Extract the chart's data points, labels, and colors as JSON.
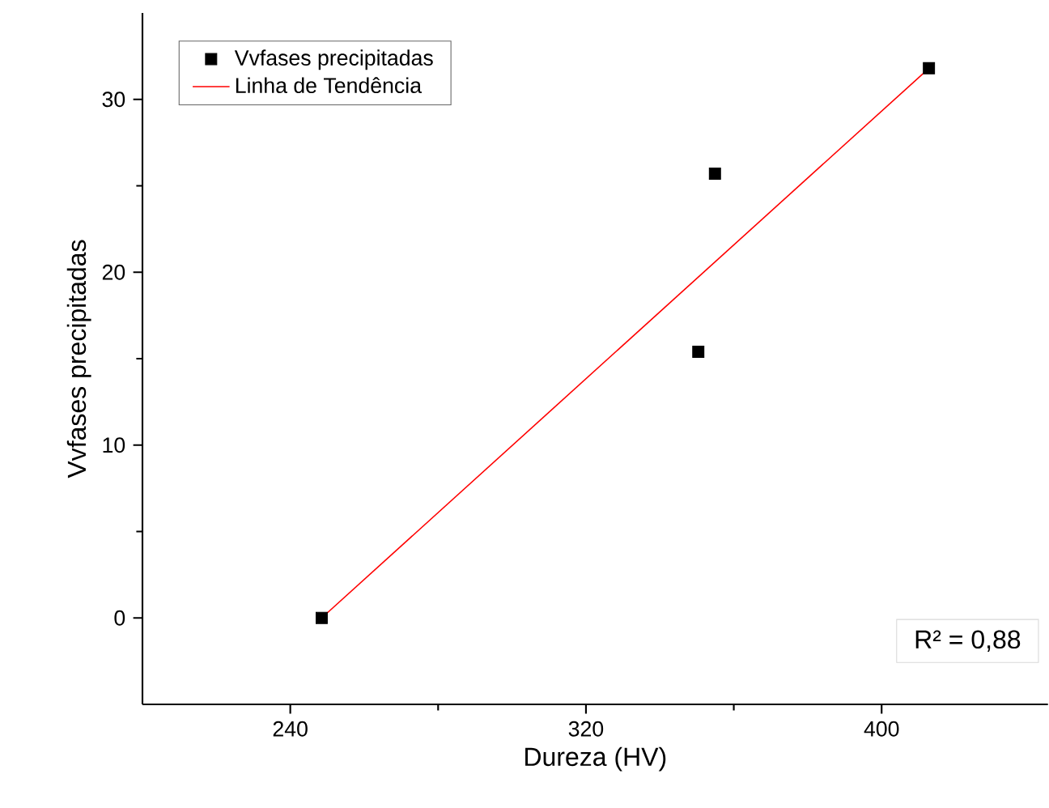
{
  "chart_data": {
    "type": "scatter",
    "xlabel": "Dureza (HV)",
    "ylabel": "Vvfases precipitadas",
    "xlim": [
      200,
      445
    ],
    "ylim": [
      -5,
      35
    ],
    "xticks": [
      240,
      320,
      400
    ],
    "yticks": [
      0,
      10,
      20,
      30
    ],
    "marker": "square",
    "legend": "top left",
    "grid": false,
    "series": [
      {
        "name": "Vvfases precipitadas",
        "color": "#000000",
        "x": [
          248.5,
          350.4,
          354.9,
          412.8
        ],
        "values": [
          0,
          15.4,
          25.7,
          31.8
        ]
      },
      {
        "name": "Linha de Tendência",
        "type": "line",
        "color": "#ff0000",
        "marker": "none",
        "x": [
          248.5,
          412.8
        ],
        "values": [
          0,
          31.8
        ]
      }
    ],
    "annotations": [
      "R² = 0,88"
    ]
  }
}
